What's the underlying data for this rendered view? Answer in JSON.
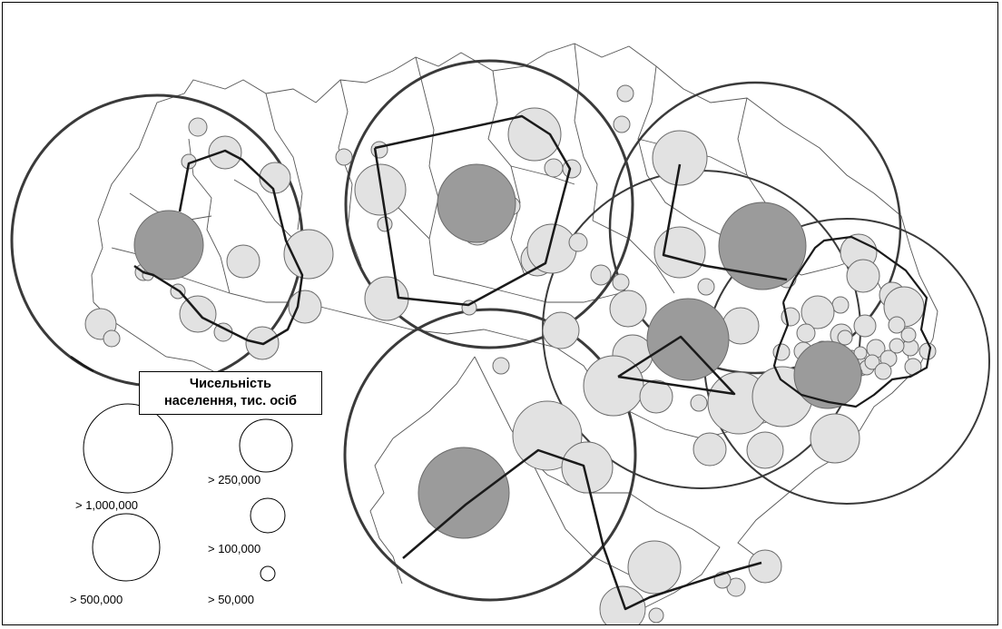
{
  "legend": {
    "title_line1": "Чисельність",
    "title_line2": "населення, тис. осіб",
    "classes": [
      {
        "label": "> 1,000,000"
      },
      {
        "label": "> 500,000"
      },
      {
        "label": "> 250,000"
      },
      {
        "label": "> 100,000"
      },
      {
        "label": "> 50,000"
      }
    ]
  },
  "colors": {
    "city_fill": "#e2e2e2",
    "hub_fill": "#9b9b9b",
    "symbol_stroke": "#6a6a6a",
    "zone_stroke": "#3a3a3a",
    "route_stroke": "#1a1a1a",
    "border_stroke": "#555555"
  }
}
